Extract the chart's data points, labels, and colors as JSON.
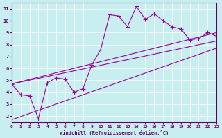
{
  "xlabel": "Windchill (Refroidissement éolien,°C)",
  "background_color": "#c8eef0",
  "line_color": "#990099",
  "grid_color": "#ffffff",
  "text_color": "#660066",
  "x_data": [
    0,
    1,
    2,
    3,
    4,
    5,
    6,
    7,
    8,
    9,
    10,
    11,
    12,
    13,
    14,
    15,
    16,
    17,
    18,
    19,
    20,
    21,
    22,
    23
  ],
  "y_main": [
    4.7,
    3.8,
    3.7,
    1.8,
    4.8,
    5.2,
    5.1,
    4.0,
    4.3,
    6.3,
    7.6,
    10.5,
    10.4,
    9.5,
    11.2,
    10.1,
    10.6,
    10.0,
    9.5,
    9.3,
    8.4,
    8.5,
    9.0,
    8.7
  ],
  "upper_start": 4.7,
  "upper_end": 9.0,
  "upper_start2": 4.7,
  "upper_end2": 8.3,
  "lower_start": 1.7,
  "lower_end": 7.7,
  "xlim": [
    0,
    23
  ],
  "ylim": [
    1.5,
    11.5
  ],
  "yticks": [
    2,
    3,
    4,
    5,
    6,
    7,
    8,
    9,
    10,
    11
  ],
  "xticks": [
    0,
    1,
    2,
    3,
    4,
    5,
    6,
    7,
    8,
    9,
    10,
    11,
    12,
    13,
    14,
    15,
    16,
    17,
    18,
    19,
    20,
    21,
    22,
    23
  ]
}
